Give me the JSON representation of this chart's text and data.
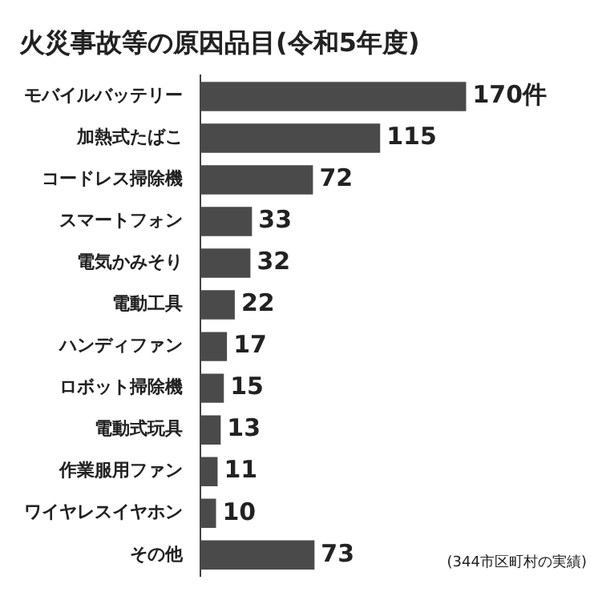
{
  "chart_data": {
    "type": "bar",
    "orientation": "horizontal",
    "title": "火災事故等の原因品目(令和5年度)",
    "categories": [
      "モバイルバッテリー",
      "加熱式たばこ",
      "コードレス掃除機",
      "スマートフォン",
      "電気かみそり",
      "電動工具",
      "ハンディファン",
      "ロボット掃除機",
      "電動式玩具",
      "作業服用ファン",
      "ワイヤレスイヤホン",
      "その他"
    ],
    "values": [
      170,
      115,
      72,
      33,
      32,
      22,
      17,
      15,
      13,
      11,
      10,
      73
    ],
    "value_labels": [
      "170件",
      "115",
      "72",
      "33",
      "32",
      "22",
      "17",
      "15",
      "13",
      "11",
      "10",
      "73"
    ],
    "color": "#4a4a4a",
    "legend": false,
    "annotations": [
      "(344市区町村の実績)"
    ]
  }
}
